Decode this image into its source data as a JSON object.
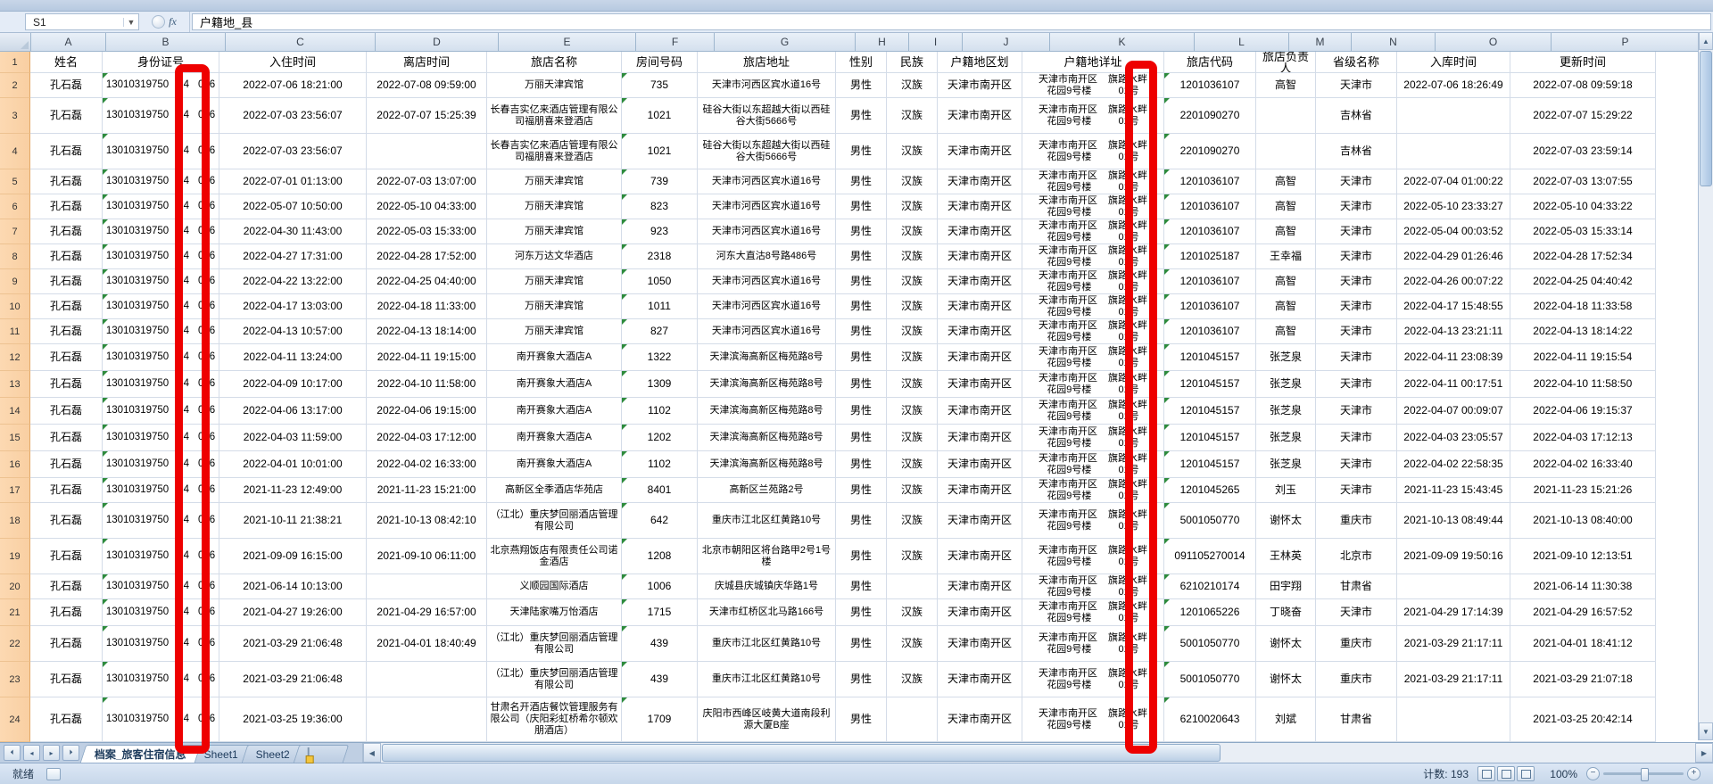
{
  "formula_bar": {
    "cell_ref": "S1",
    "fx_label": "fx",
    "formula": "户籍地_县"
  },
  "columns": [
    {
      "letter": "A",
      "header": "姓名"
    },
    {
      "letter": "B",
      "header": "身份证号"
    },
    {
      "letter": "C",
      "header": "入住时间"
    },
    {
      "letter": "D",
      "header": "离店时间"
    },
    {
      "letter": "E",
      "header": "旅店名称"
    },
    {
      "letter": "F",
      "header": "房间号码"
    },
    {
      "letter": "G",
      "header": "旅店地址"
    },
    {
      "letter": "H",
      "header": "性别"
    },
    {
      "letter": "I",
      "header": "民族"
    },
    {
      "letter": "J",
      "header": "户籍地区划"
    },
    {
      "letter": "K",
      "header": "户籍地详址"
    },
    {
      "letter": "L",
      "header": "旅店代码"
    },
    {
      "letter": "M",
      "header": "旅店负责人"
    },
    {
      "letter": "N",
      "header": "省级名称"
    },
    {
      "letter": "O",
      "header": "入库时间"
    },
    {
      "letter": "P",
      "header": "更新时间"
    }
  ],
  "common": {
    "guest_name": "孔石磊",
    "id_parts": [
      "13010319750",
      "14",
      "016"
    ],
    "gender": "男性",
    "reg_area": "天津市南开区",
    "reg_addr_line1": [
      "天津市南开区",
      "旗路水畔"
    ],
    "reg_addr_line2": [
      "花园9号楼",
      "01号"
    ]
  },
  "rows": [
    {
      "n": 2,
      "checkin": "2022-07-06 18:21:00",
      "checkout": "2022-07-08 09:59:00",
      "hotel": "万丽天津宾馆",
      "room": "735",
      "addr": "天津市河西区宾水道16号",
      "ethnic": "汉族",
      "code": "1201036107",
      "manager": "高智",
      "province": "天津市",
      "stored": "2022-07-06 18:26:49",
      "updated": "2022-07-08 09:59:18"
    },
    {
      "n": 3,
      "checkin": "2022-07-03 23:56:07",
      "checkout": "2022-07-07 15:25:39",
      "hotel": "长春吉实亿来酒店管理有限公司福朋喜来登酒店",
      "room": "1021",
      "addr": "硅谷大街以东超越大街以西硅谷大街5666号",
      "ethnic": "汉族",
      "code": "2201090270",
      "manager": "",
      "province": "吉林省",
      "stored": "",
      "updated": "2022-07-07 15:29:22"
    },
    {
      "n": 4,
      "checkin": "2022-07-03 23:56:07",
      "checkout": "",
      "hotel": "长春吉实亿来酒店管理有限公司福朋喜来登酒店",
      "room": "1021",
      "addr": "硅谷大街以东超越大街以西硅谷大街5666号",
      "ethnic": "汉族",
      "code": "2201090270",
      "manager": "",
      "province": "吉林省",
      "stored": "",
      "updated": "2022-07-03 23:59:14"
    },
    {
      "n": 5,
      "checkin": "2022-07-01 01:13:00",
      "checkout": "2022-07-03 13:07:00",
      "hotel": "万丽天津宾馆",
      "room": "739",
      "addr": "天津市河西区宾水道16号",
      "ethnic": "汉族",
      "code": "1201036107",
      "manager": "高智",
      "province": "天津市",
      "stored": "2022-07-04 01:00:22",
      "updated": "2022-07-03 13:07:55"
    },
    {
      "n": 6,
      "checkin": "2022-05-07 10:50:00",
      "checkout": "2022-05-10 04:33:00",
      "hotel": "万丽天津宾馆",
      "room": "823",
      "addr": "天津市河西区宾水道16号",
      "ethnic": "汉族",
      "code": "1201036107",
      "manager": "高智",
      "province": "天津市",
      "stored": "2022-05-10 23:33:27",
      "updated": "2022-05-10 04:33:22"
    },
    {
      "n": 7,
      "checkin": "2022-04-30 11:43:00",
      "checkout": "2022-05-03 15:33:00",
      "hotel": "万丽天津宾馆",
      "room": "923",
      "addr": "天津市河西区宾水道16号",
      "ethnic": "汉族",
      "code": "1201036107",
      "manager": "高智",
      "province": "天津市",
      "stored": "2022-05-04 00:03:52",
      "updated": "2022-05-03 15:33:14"
    },
    {
      "n": 8,
      "checkin": "2022-04-27 17:31:00",
      "checkout": "2022-04-28 17:52:00",
      "hotel": "河东万达文华酒店",
      "room": "2318",
      "addr": "河东大直沽8号路486号",
      "ethnic": "汉族",
      "code": "1201025187",
      "manager": "王幸福",
      "province": "天津市",
      "stored": "2022-04-29 01:26:46",
      "updated": "2022-04-28 17:52:34"
    },
    {
      "n": 9,
      "checkin": "2022-04-22 13:22:00",
      "checkout": "2022-04-25 04:40:00",
      "hotel": "万丽天津宾馆",
      "room": "1050",
      "addr": "天津市河西区宾水道16号",
      "ethnic": "汉族",
      "code": "1201036107",
      "manager": "高智",
      "province": "天津市",
      "stored": "2022-04-26 00:07:22",
      "updated": "2022-04-25 04:40:42"
    },
    {
      "n": 10,
      "checkin": "2022-04-17 13:03:00",
      "checkout": "2022-04-18 11:33:00",
      "hotel": "万丽天津宾馆",
      "room": "1011",
      "addr": "天津市河西区宾水道16号",
      "ethnic": "汉族",
      "code": "1201036107",
      "manager": "高智",
      "province": "天津市",
      "stored": "2022-04-17 15:48:55",
      "updated": "2022-04-18 11:33:58"
    },
    {
      "n": 11,
      "checkin": "2022-04-13 10:57:00",
      "checkout": "2022-04-13 18:14:00",
      "hotel": "万丽天津宾馆",
      "room": "827",
      "addr": "天津市河西区宾水道16号",
      "ethnic": "汉族",
      "code": "1201036107",
      "manager": "高智",
      "province": "天津市",
      "stored": "2022-04-13 23:21:11",
      "updated": "2022-04-13 18:14:22"
    },
    {
      "n": 12,
      "checkin": "2022-04-11 13:24:00",
      "checkout": "2022-04-11 19:15:00",
      "hotel": "南开赛象大酒店A",
      "room": "1322",
      "addr": "天津滨海高新区梅苑路8号",
      "ethnic": "汉族",
      "code": "1201045157",
      "manager": "张芝泉",
      "province": "天津市",
      "stored": "2022-04-11 23:08:39",
      "updated": "2022-04-11 19:15:54"
    },
    {
      "n": 13,
      "checkin": "2022-04-09 10:17:00",
      "checkout": "2022-04-10 11:58:00",
      "hotel": "南开赛象大酒店A",
      "room": "1309",
      "addr": "天津滨海高新区梅苑路8号",
      "ethnic": "汉族",
      "code": "1201045157",
      "manager": "张芝泉",
      "province": "天津市",
      "stored": "2022-04-11 00:17:51",
      "updated": "2022-04-10 11:58:50"
    },
    {
      "n": 14,
      "checkin": "2022-04-06 13:17:00",
      "checkout": "2022-04-06 19:15:00",
      "hotel": "南开赛象大酒店A",
      "room": "1102",
      "addr": "天津滨海高新区梅苑路8号",
      "ethnic": "汉族",
      "code": "1201045157",
      "manager": "张芝泉",
      "province": "天津市",
      "stored": "2022-04-07 00:09:07",
      "updated": "2022-04-06 19:15:37"
    },
    {
      "n": 15,
      "checkin": "2022-04-03 11:59:00",
      "checkout": "2022-04-03 17:12:00",
      "hotel": "南开赛象大酒店A",
      "room": "1202",
      "addr": "天津滨海高新区梅苑路8号",
      "ethnic": "汉族",
      "code": "1201045157",
      "manager": "张芝泉",
      "province": "天津市",
      "stored": "2022-04-03 23:05:57",
      "updated": "2022-04-03 17:12:13"
    },
    {
      "n": 16,
      "checkin": "2022-04-01 10:01:00",
      "checkout": "2022-04-02 16:33:00",
      "hotel": "南开赛象大酒店A",
      "room": "1102",
      "addr": "天津滨海高新区梅苑路8号",
      "ethnic": "汉族",
      "code": "1201045157",
      "manager": "张芝泉",
      "province": "天津市",
      "stored": "2022-04-02 22:58:35",
      "updated": "2022-04-02 16:33:40"
    },
    {
      "n": 17,
      "checkin": "2021-11-23 12:49:00",
      "checkout": "2021-11-23 15:21:00",
      "hotel": "高新区全季酒店华苑店",
      "room": "8401",
      "addr": "高新区兰苑路2号",
      "ethnic": "汉族",
      "code": "1201045265",
      "manager": "刘玉",
      "province": "天津市",
      "stored": "2021-11-23 15:43:45",
      "updated": "2021-11-23 15:21:26"
    },
    {
      "n": 18,
      "checkin": "2021-10-11 21:38:21",
      "checkout": "2021-10-13 08:42:10",
      "hotel": "（江北）重庆梦回丽酒店管理有限公司",
      "room": "642",
      "addr": "重庆市江北区红黄路10号",
      "ethnic": "汉族",
      "code": "5001050770",
      "manager": "谢怀太",
      "province": "重庆市",
      "stored": "2021-10-13 08:49:44",
      "updated": "2021-10-13 08:40:00"
    },
    {
      "n": 19,
      "checkin": "2021-09-09 16:15:00",
      "checkout": "2021-09-10 06:11:00",
      "hotel": "北京燕翔饭店有限责任公司诺金酒店",
      "room": "1208",
      "addr": "北京市朝阳区将台路甲2号1号楼",
      "ethnic": "汉族",
      "code": "091105270014",
      "manager": "王林英",
      "province": "北京市",
      "stored": "2021-09-09 19:50:16",
      "updated": "2021-09-10 12:13:51"
    },
    {
      "n": 20,
      "checkin": "2021-06-14 10:13:00",
      "checkout": "",
      "hotel": "义顺园国际酒店",
      "room": "1006",
      "addr": "庆城县庆城镇庆华路1号",
      "ethnic": "",
      "code": "6210210174",
      "manager": "田宇翔",
      "province": "甘肃省",
      "stored": "",
      "updated": "2021-06-14 11:30:38"
    },
    {
      "n": 21,
      "checkin": "2021-04-27 19:26:00",
      "checkout": "2021-04-29 16:57:00",
      "hotel": "天津陆家嘴万怡酒店",
      "room": "1715",
      "addr": "天津市红桥区北马路166号",
      "ethnic": "汉族",
      "code": "1201065226",
      "manager": "丁晓奋",
      "province": "天津市",
      "stored": "2021-04-29 17:14:39",
      "updated": "2021-04-29 16:57:52"
    },
    {
      "n": 22,
      "checkin": "2021-03-29 21:06:48",
      "checkout": "2021-04-01 18:40:49",
      "hotel": "（江北）重庆梦回丽酒店管理有限公司",
      "room": "439",
      "addr": "重庆市江北区红黄路10号",
      "ethnic": "汉族",
      "code": "5001050770",
      "manager": "谢怀太",
      "province": "重庆市",
      "stored": "2021-03-29 21:17:11",
      "updated": "2021-04-01 18:41:12"
    },
    {
      "n": 23,
      "checkin": "2021-03-29 21:06:48",
      "checkout": "",
      "hotel": "（江北）重庆梦回丽酒店管理有限公司",
      "room": "439",
      "addr": "重庆市江北区红黄路10号",
      "ethnic": "汉族",
      "code": "5001050770",
      "manager": "谢怀太",
      "province": "重庆市",
      "stored": "2021-03-29 21:17:11",
      "updated": "2021-03-29 21:07:18"
    },
    {
      "n": 24,
      "checkin": "2021-03-25 19:36:00",
      "checkout": "",
      "hotel": "甘肃名开酒店餐饮管理服务有限公司（庆阳彩虹桥希尔顿欢朋酒店）",
      "room": "1709",
      "addr": "庆阳市西峰区岐黄大道南段利源大厦B座",
      "ethnic": "",
      "code": "6210020643",
      "manager": "刘斌",
      "province": "甘肃省",
      "stored": "",
      "updated": "2021-03-25 20:42:14"
    }
  ],
  "sheet_tabs": {
    "tabs": [
      {
        "label": "档案_旅客住宿信息",
        "active": true
      },
      {
        "label": "Sheet1",
        "active": false
      },
      {
        "label": "Sheet2",
        "active": false
      }
    ]
  },
  "status_bar": {
    "ready_label": "就绪",
    "count_label": "计数: 193",
    "zoom_label": "100%"
  }
}
